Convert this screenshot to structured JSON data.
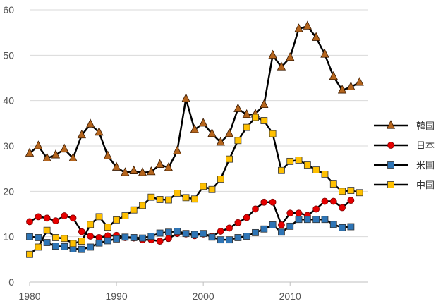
{
  "chart_data": {
    "type": "line",
    "title": "",
    "xlabel": "",
    "ylabel": "",
    "xlim": [
      1980,
      2019
    ],
    "ylim": [
      0,
      60
    ],
    "xticks": [
      1980,
      1990,
      2000,
      2010
    ],
    "yticks": [
      0,
      10,
      20,
      30,
      40,
      50,
      60
    ],
    "grid": "horizontal",
    "legend_position": "right",
    "series": [
      {
        "name": "韓国",
        "marker": "triangle",
        "color": "#b5651d",
        "x": [
          1980,
          1981,
          1982,
          1983,
          1984,
          1985,
          1986,
          1987,
          1988,
          1989,
          1990,
          1991,
          1992,
          1993,
          1994,
          1995,
          1996,
          1997,
          1998,
          1999,
          2000,
          2001,
          2002,
          2003,
          2004,
          2005,
          2006,
          2007,
          2008,
          2009,
          2010,
          2011,
          2012,
          2013,
          2014,
          2015,
          2016,
          2017,
          2018
        ],
        "values": [
          28.4,
          30.0,
          27.3,
          28.0,
          29.3,
          27.3,
          32.4,
          34.8,
          33.0,
          27.8,
          25.3,
          24.1,
          24.5,
          24.1,
          24.3,
          25.9,
          25.2,
          28.9,
          40.4,
          33.6,
          35.0,
          32.7,
          30.8,
          32.7,
          38.2,
          36.9,
          37.0,
          39.1,
          50.0,
          47.4,
          49.5,
          55.8,
          56.4,
          53.9,
          50.2,
          45.3,
          42.3,
          43.0,
          44.0
        ]
      },
      {
        "name": "日本",
        "marker": "circle",
        "color": "#e60000",
        "x": [
          1980,
          1981,
          1982,
          1983,
          1984,
          1985,
          1986,
          1987,
          1988,
          1989,
          1990,
          1991,
          1992,
          1993,
          1994,
          1995,
          1996,
          1997,
          1998,
          1999,
          2000,
          2001,
          2002,
          2003,
          2004,
          2005,
          2006,
          2007,
          2008,
          2009,
          2010,
          2011,
          2012,
          2013,
          2014,
          2015,
          2016,
          2017
        ],
        "values": [
          13.3,
          14.4,
          14.1,
          13.5,
          14.6,
          14.1,
          11.1,
          10.1,
          9.8,
          10.2,
          10.3,
          9.8,
          9.7,
          9.3,
          9.3,
          9.0,
          9.6,
          10.7,
          10.6,
          10.2,
          10.6,
          10.1,
          11.2,
          11.9,
          13.1,
          14.2,
          16.1,
          17.6,
          17.6,
          12.6,
          15.2,
          15.2,
          14.7,
          16.1,
          17.8,
          17.8,
          16.4,
          18.0
        ]
      },
      {
        "name": "米国",
        "marker": "square",
        "color": "#2e75b6",
        "x": [
          1980,
          1981,
          1982,
          1983,
          1984,
          1985,
          1986,
          1987,
          1988,
          1989,
          1990,
          1991,
          1992,
          1993,
          1994,
          1995,
          1996,
          1997,
          1998,
          1999,
          2000,
          2001,
          2002,
          2003,
          2004,
          2005,
          2006,
          2007,
          2008,
          2009,
          2010,
          2011,
          2012,
          2013,
          2014,
          2015,
          2016,
          2017
        ],
        "values": [
          10.0,
          9.8,
          8.7,
          7.9,
          7.8,
          7.3,
          7.2,
          7.7,
          8.6,
          9.1,
          9.5,
          9.9,
          9.8,
          9.7,
          10.1,
          10.8,
          11.0,
          11.2,
          10.7,
          10.5,
          10.7,
          9.9,
          9.3,
          9.3,
          9.8,
          10.1,
          10.9,
          11.7,
          12.6,
          11.0,
          12.3,
          13.8,
          13.8,
          13.8,
          13.8,
          12.7,
          12.0,
          12.2
        ]
      },
      {
        "name": "中国",
        "marker": "square",
        "color": "#ffc000",
        "x": [
          1980,
          1981,
          1982,
          1983,
          1984,
          1985,
          1986,
          1987,
          1988,
          1989,
          1990,
          1991,
          1992,
          1993,
          1994,
          1995,
          1996,
          1997,
          1998,
          1999,
          2000,
          2001,
          2002,
          2003,
          2004,
          2005,
          2006,
          2007,
          2008,
          2009,
          2010,
          2011,
          2012,
          2013,
          2014,
          2015,
          2016,
          2017,
          2018
        ],
        "values": [
          6.1,
          7.7,
          11.4,
          9.8,
          9.6,
          8.5,
          9.0,
          12.7,
          14.4,
          12.1,
          13.7,
          14.6,
          15.9,
          16.9,
          18.7,
          18.2,
          18.1,
          19.6,
          18.6,
          18.3,
          21.1,
          20.4,
          22.7,
          27.1,
          31.2,
          34.1,
          36.3,
          35.6,
          32.7,
          24.6,
          26.6,
          26.9,
          25.8,
          24.7,
          23.8,
          21.6,
          20.0,
          20.2,
          19.7
        ]
      }
    ]
  }
}
